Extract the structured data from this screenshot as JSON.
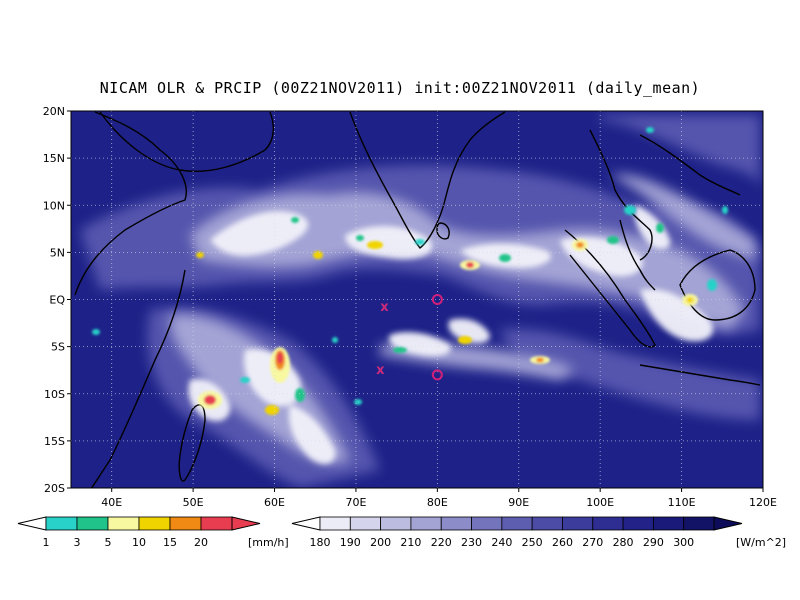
{
  "title": "NICAM OLR & PRCIP (00Z21NOV2011) init:00Z21NOV2011 (daily_mean)",
  "map": {
    "lon_range": [
      35,
      120
    ],
    "lat_range": [
      -20,
      20
    ],
    "lon_ticks": [
      "40E",
      "50E",
      "60E",
      "70E",
      "80E",
      "90E",
      "100E",
      "110E",
      "120E"
    ],
    "lat_ticks": [
      "20N",
      "15N",
      "10N",
      "5N",
      "EQ",
      "5S",
      "10S",
      "15S",
      "20S"
    ],
    "background_color": "#1e2288",
    "markers": [
      {
        "type": "x",
        "label": "x",
        "lon": 73.5,
        "lat": -0.8,
        "color": "#cc2a7a"
      },
      {
        "type": "x",
        "label": "x",
        "lon": 73.0,
        "lat": -7.5,
        "color": "#cc2a7a"
      },
      {
        "type": "circle",
        "label": "o",
        "lon": 80.0,
        "lat": 0.0,
        "color": "#d0207a"
      },
      {
        "type": "circle",
        "label": "o",
        "lon": 80.0,
        "lat": -8.0,
        "color": "#d0207a"
      }
    ]
  },
  "precip_colorbar": {
    "labels": [
      "1",
      "3",
      "5",
      "10",
      "15",
      "20"
    ],
    "unit": "[mm/h]",
    "colors": [
      "#28d2c8",
      "#20c48a",
      "#f8f8a0",
      "#f0d400",
      "#f08a14",
      "#e83c50"
    ]
  },
  "olr_colorbar": {
    "labels": [
      "180",
      "190",
      "200",
      "210",
      "220",
      "230",
      "240",
      "250",
      "260",
      "270",
      "280",
      "290",
      "300"
    ],
    "unit": "[W/m^2]",
    "colors": [
      "#ececf6",
      "#d4d4ec",
      "#bcbce0",
      "#a4a4d4",
      "#8c8cc8",
      "#7474bc",
      "#5e5eb0",
      "#4c4ca6",
      "#3c3c9c",
      "#2e2e92",
      "#222288",
      "#1a1a7a",
      "#121266"
    ]
  }
}
